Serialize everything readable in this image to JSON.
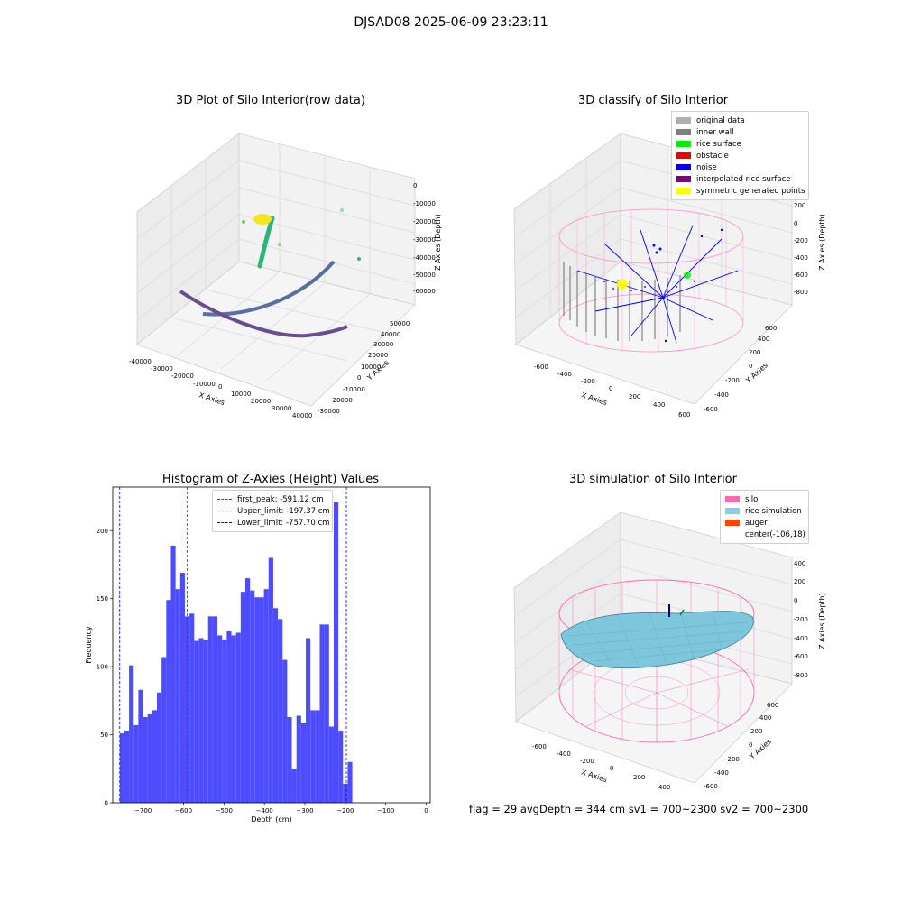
{
  "suptitle": "DJSAD08 2025-06-09 23:23:11",
  "panels": {
    "raw": {
      "title": "3D Plot of Silo Interior(row data)",
      "xlabel": "X Axies",
      "ylabel": "Y Axies",
      "zlabel": "Z Axies (Depth)",
      "xticks": [
        "-40000",
        "-30000",
        "-20000",
        "-10000",
        "0",
        "10000",
        "20000",
        "30000",
        "40000"
      ],
      "yticks": [
        "-30000",
        "-20000",
        "-10000",
        "0",
        "10000",
        "20000",
        "30000",
        "40000",
        "50000"
      ],
      "zticks": [
        "0",
        "-10000",
        "-20000",
        "-30000",
        "-40000",
        "-50000",
        "-60000"
      ]
    },
    "classify": {
      "title": "3D classify of Silo Interior",
      "xlabel": "X Axies",
      "ylabel": "Y Axies",
      "zlabel": "Z Axies (Depth)",
      "xticks": [
        "-600",
        "-400",
        "-200",
        "0",
        "200",
        "400",
        "600"
      ],
      "yticks": [
        "-600",
        "-400",
        "-200",
        "0",
        "200",
        "400",
        "600"
      ],
      "zticks": [
        "200",
        "0",
        "-200",
        "-400",
        "-600",
        "-800"
      ],
      "legend": [
        {
          "label": "original data",
          "color": "#b0b0b0"
        },
        {
          "label": "inner wall",
          "color": "#808080"
        },
        {
          "label": "rice surface",
          "color": "#00ee00"
        },
        {
          "label": "obstacle",
          "color": "#ee0000"
        },
        {
          "label": "noise",
          "color": "#0000ee"
        },
        {
          "label": "interpolated rice surface",
          "color": "#800080"
        },
        {
          "label": "symmetric generated points",
          "color": "#ffff00"
        }
      ]
    },
    "simulation": {
      "title": "3D simulation of Silo Interior",
      "xlabel": "X Axies",
      "ylabel": "Y Axies",
      "zlabel": "Z Axies (Depth)",
      "xticks": [
        "-600",
        "-400",
        "-200",
        "0",
        "200",
        "400"
      ],
      "yticks": [
        "-600",
        "-400",
        "-200",
        "0",
        "200",
        "400",
        "600"
      ],
      "zticks": [
        "400",
        "200",
        "0",
        "-200",
        "-400",
        "-600",
        "-800"
      ],
      "legend": [
        {
          "label": "silo",
          "color": "#ff69b4"
        },
        {
          "label": "rice simulation",
          "color": "#87ceeb"
        },
        {
          "label": "auger",
          "color": "#ff4500"
        },
        {
          "label": "center(-106,18)",
          "color": ""
        }
      ],
      "footer": "flag = 29  avgDepth = 344 cm  sv1 = 700~2300  sv2 = 700~2300"
    }
  },
  "chart_data": [
    {
      "type": "bar",
      "title": "Histogram of Z-Axies (Height) Values",
      "xlabel": "Depth (cm)",
      "ylabel": "Frequency",
      "xlim": [
        -775,
        10
      ],
      "ylim": [
        0,
        232
      ],
      "xticks": [
        -700,
        -600,
        -500,
        -400,
        -300,
        -200,
        -100,
        0
      ],
      "yticks": [
        0,
        50,
        100,
        150,
        200
      ],
      "bar_color": "#4d4dff",
      "bin_width": 11.5,
      "bin_start": -757.7,
      "values": [
        51,
        53,
        101,
        57,
        83,
        63,
        65,
        68,
        81,
        107,
        149,
        189,
        157,
        169,
        137,
        139,
        119,
        121,
        120,
        137,
        137,
        123,
        120,
        126,
        123,
        125,
        155,
        165,
        156,
        151,
        151,
        157,
        180,
        143,
        135,
        105,
        63,
        25,
        64,
        59,
        121,
        68,
        68,
        131,
        131,
        56,
        221,
        53,
        14,
        30
      ],
      "lines": [
        {
          "label": "first_peak: -591.12 cm",
          "x": -591.12,
          "color": "#ff0000"
        },
        {
          "label": "Upper_limit: -197.37 cm",
          "x": -197.37,
          "color": "#0000cc"
        },
        {
          "label": "Lower_limit: -757.70 cm",
          "x": -757.7,
          "color": "#0000cc"
        }
      ]
    }
  ]
}
